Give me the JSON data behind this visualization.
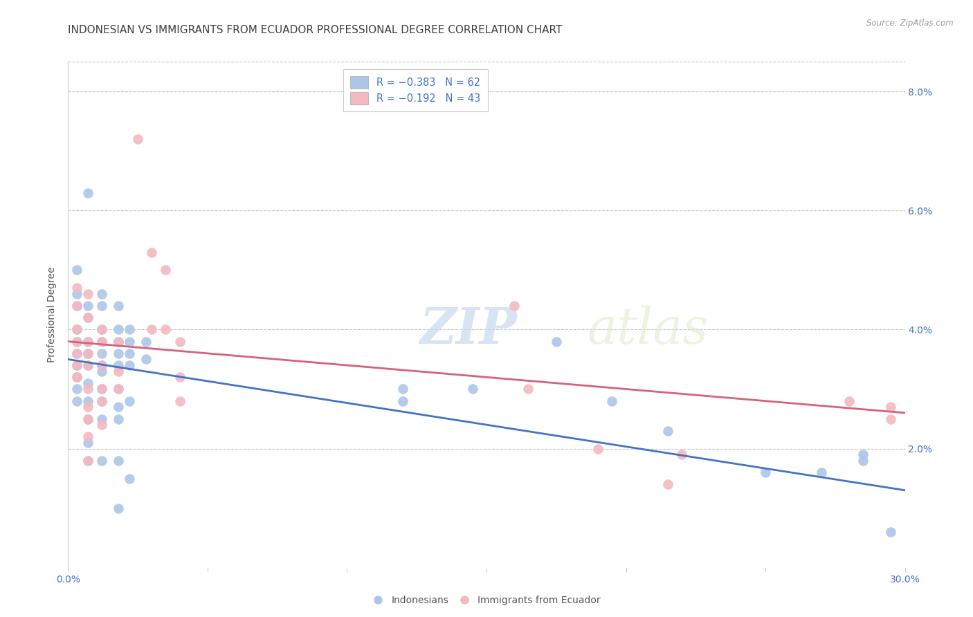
{
  "title": "INDONESIAN VS IMMIGRANTS FROM ECUADOR PROFESSIONAL DEGREE CORRELATION CHART",
  "source": "Source: ZipAtlas.com",
  "ylabel": "Professional Degree",
  "xlim": [
    0.0,
    0.3
  ],
  "ylim": [
    0.0,
    0.085
  ],
  "xticks": [
    0.0,
    0.05,
    0.1,
    0.15,
    0.2,
    0.25,
    0.3
  ],
  "xticklabels": [
    "0.0%",
    "",
    "",
    "",
    "",
    "",
    "30.0%"
  ],
  "yticks": [
    0.0,
    0.02,
    0.04,
    0.06,
    0.08
  ],
  "yticklabels_right": [
    "",
    "2.0%",
    "4.0%",
    "6.0%",
    "8.0%"
  ],
  "legend_labels": [
    "Indonesians",
    "Immigrants from Ecuador"
  ],
  "scatter_blue": [
    [
      0.003,
      0.05
    ],
    [
      0.003,
      0.046
    ],
    [
      0.003,
      0.044
    ],
    [
      0.003,
      0.04
    ],
    [
      0.003,
      0.038
    ],
    [
      0.003,
      0.036
    ],
    [
      0.003,
      0.034
    ],
    [
      0.003,
      0.032
    ],
    [
      0.003,
      0.03
    ],
    [
      0.003,
      0.028
    ],
    [
      0.007,
      0.063
    ],
    [
      0.007,
      0.044
    ],
    [
      0.007,
      0.042
    ],
    [
      0.007,
      0.038
    ],
    [
      0.007,
      0.036
    ],
    [
      0.007,
      0.034
    ],
    [
      0.007,
      0.031
    ],
    [
      0.007,
      0.028
    ],
    [
      0.007,
      0.025
    ],
    [
      0.007,
      0.021
    ],
    [
      0.007,
      0.018
    ],
    [
      0.012,
      0.046
    ],
    [
      0.012,
      0.044
    ],
    [
      0.012,
      0.04
    ],
    [
      0.012,
      0.038
    ],
    [
      0.012,
      0.036
    ],
    [
      0.012,
      0.034
    ],
    [
      0.012,
      0.033
    ],
    [
      0.012,
      0.03
    ],
    [
      0.012,
      0.028
    ],
    [
      0.012,
      0.025
    ],
    [
      0.012,
      0.018
    ],
    [
      0.018,
      0.044
    ],
    [
      0.018,
      0.04
    ],
    [
      0.018,
      0.038
    ],
    [
      0.018,
      0.036
    ],
    [
      0.018,
      0.034
    ],
    [
      0.018,
      0.03
    ],
    [
      0.018,
      0.027
    ],
    [
      0.018,
      0.025
    ],
    [
      0.018,
      0.018
    ],
    [
      0.018,
      0.01
    ],
    [
      0.022,
      0.04
    ],
    [
      0.022,
      0.038
    ],
    [
      0.022,
      0.036
    ],
    [
      0.022,
      0.034
    ],
    [
      0.022,
      0.028
    ],
    [
      0.022,
      0.015
    ],
    [
      0.028,
      0.038
    ],
    [
      0.028,
      0.035
    ],
    [
      0.12,
      0.03
    ],
    [
      0.12,
      0.028
    ],
    [
      0.145,
      0.03
    ],
    [
      0.175,
      0.038
    ],
    [
      0.195,
      0.028
    ],
    [
      0.215,
      0.023
    ],
    [
      0.25,
      0.016
    ],
    [
      0.27,
      0.016
    ],
    [
      0.285,
      0.019
    ],
    [
      0.285,
      0.018
    ],
    [
      0.295,
      0.006
    ]
  ],
  "scatter_pink": [
    [
      0.003,
      0.047
    ],
    [
      0.003,
      0.044
    ],
    [
      0.003,
      0.04
    ],
    [
      0.003,
      0.038
    ],
    [
      0.003,
      0.036
    ],
    [
      0.003,
      0.034
    ],
    [
      0.003,
      0.032
    ],
    [
      0.007,
      0.046
    ],
    [
      0.007,
      0.042
    ],
    [
      0.007,
      0.038
    ],
    [
      0.007,
      0.036
    ],
    [
      0.007,
      0.034
    ],
    [
      0.007,
      0.03
    ],
    [
      0.007,
      0.027
    ],
    [
      0.007,
      0.025
    ],
    [
      0.007,
      0.022
    ],
    [
      0.007,
      0.018
    ],
    [
      0.012,
      0.04
    ],
    [
      0.012,
      0.038
    ],
    [
      0.012,
      0.034
    ],
    [
      0.012,
      0.03
    ],
    [
      0.012,
      0.028
    ],
    [
      0.012,
      0.024
    ],
    [
      0.018,
      0.038
    ],
    [
      0.018,
      0.033
    ],
    [
      0.018,
      0.03
    ],
    [
      0.025,
      0.072
    ],
    [
      0.03,
      0.053
    ],
    [
      0.03,
      0.04
    ],
    [
      0.035,
      0.05
    ],
    [
      0.035,
      0.04
    ],
    [
      0.04,
      0.038
    ],
    [
      0.04,
      0.032
    ],
    [
      0.04,
      0.028
    ],
    [
      0.16,
      0.044
    ],
    [
      0.165,
      0.03
    ],
    [
      0.19,
      0.02
    ],
    [
      0.215,
      0.014
    ],
    [
      0.22,
      0.019
    ],
    [
      0.28,
      0.028
    ],
    [
      0.295,
      0.027
    ],
    [
      0.295,
      0.025
    ]
  ],
  "blue_line_x": [
    0.0,
    0.3
  ],
  "blue_line_y": [
    0.035,
    0.013
  ],
  "pink_line_x": [
    0.0,
    0.3
  ],
  "pink_line_y": [
    0.038,
    0.026
  ],
  "dot_color_blue": "#adc6e8",
  "dot_color_pink": "#f4b8c1",
  "line_color_blue": "#4472c4",
  "line_color_pink": "#d9607a",
  "watermark_text": "ZIP",
  "watermark_text2": "atlas",
  "background_color": "#ffffff",
  "grid_color": "#c8c8c8",
  "title_color": "#404040",
  "axis_label_color": "#555555",
  "tick_color": "#4472c4",
  "title_fontsize": 11,
  "axis_label_fontsize": 10,
  "tick_fontsize": 10
}
